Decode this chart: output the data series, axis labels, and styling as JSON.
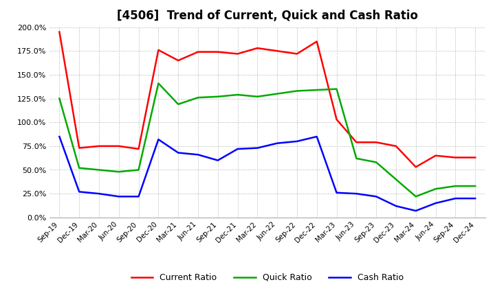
{
  "title": "[4506]  Trend of Current, Quick and Cash Ratio",
  "x_labels": [
    "Sep-19",
    "Dec-19",
    "Mar-20",
    "Jun-20",
    "Sep-20",
    "Dec-20",
    "Mar-21",
    "Jun-21",
    "Sep-21",
    "Dec-21",
    "Mar-22",
    "Jun-22",
    "Sep-22",
    "Dec-22",
    "Mar-23",
    "Jun-23",
    "Sep-23",
    "Dec-23",
    "Mar-24",
    "Jun-24",
    "Sep-24",
    "Dec-24"
  ],
  "current_ratio": [
    195,
    73,
    75,
    75,
    72,
    176,
    165,
    174,
    174,
    172,
    178,
    175,
    172,
    185,
    103,
    79,
    79,
    75,
    53,
    65,
    63,
    63
  ],
  "quick_ratio": [
    125,
    52,
    50,
    48,
    50,
    141,
    119,
    126,
    127,
    129,
    127,
    130,
    133,
    134,
    135,
    62,
    58,
    40,
    22,
    30,
    33,
    33
  ],
  "cash_ratio": [
    85,
    27,
    25,
    22,
    22,
    82,
    68,
    66,
    60,
    72,
    73,
    78,
    80,
    85,
    26,
    25,
    22,
    12,
    7,
    15,
    20,
    20
  ],
  "ylim": [
    0,
    200
  ],
  "yticks": [
    0,
    25,
    50,
    75,
    100,
    125,
    150,
    175,
    200
  ],
  "ytick_labels": [
    "0.0%",
    "25.0%",
    "50.0%",
    "75.0%",
    "100.0%",
    "125.0%",
    "150.0%",
    "175.0%",
    "200.0%"
  ],
  "current_color": "#FF0000",
  "quick_color": "#00AA00",
  "cash_color": "#0000FF",
  "bg_color": "#FFFFFF",
  "plot_bg_color": "#FFFFFF",
  "grid_color": "#AAAAAA",
  "title_fontsize": 12,
  "legend_labels": [
    "Current Ratio",
    "Quick Ratio",
    "Cash Ratio"
  ],
  "line_width": 1.8
}
